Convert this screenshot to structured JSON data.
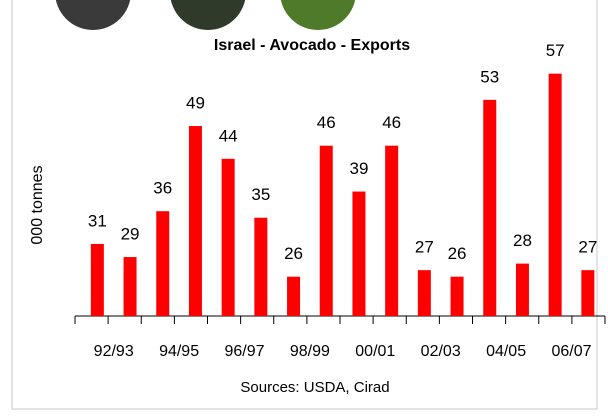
{
  "chart_data": {
    "type": "bar",
    "title": "Israel - Avocado - Exports",
    "y_label": "000 tonnes",
    "source": "Sources: USDA, Cirad",
    "categories": [
      "92/93",
      null,
      "94/95",
      null,
      "96/97",
      null,
      "98/99",
      null,
      "00/01",
      null,
      "02/03",
      null,
      "04/05",
      null,
      "06/07",
      null
    ],
    "values": [
      31,
      29,
      36,
      49,
      44,
      35,
      26,
      46,
      39,
      46,
      27,
      26,
      53,
      28,
      57,
      27
    ],
    "color": "#ff0000",
    "ylim": [
      20,
      60
    ]
  }
}
